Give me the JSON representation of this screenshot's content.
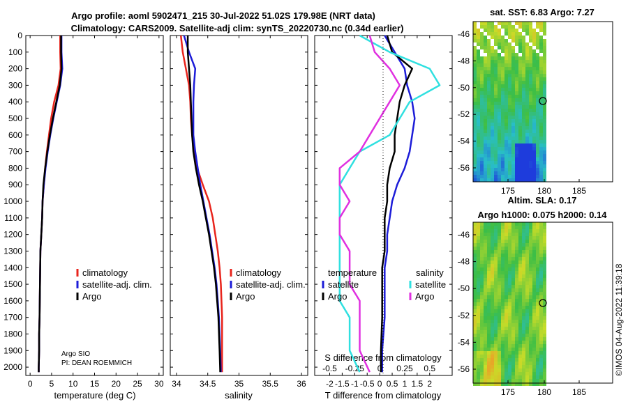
{
  "header": {
    "title_line1": "Argo profile: aoml 5902471_215 30-Jul-2022 51.02S 179.98E (NRT data)",
    "title_line2": "Climatology: CARS2009. Satellite-adj clim: synTS_20220730.nc (0.34d earlier)"
  },
  "colors": {
    "climatology": "#e8241c",
    "satellite_adj": "#1c1cd8",
    "argo": "#000000",
    "argo_salinity_diff": "#e030e0",
    "satellite_diff": "#30e0e0"
  },
  "depth_axis": {
    "ticks": [
      "0",
      "100",
      "200",
      "300",
      "400",
      "500",
      "600",
      "700",
      "800",
      "900",
      "1000",
      "1100",
      "1200",
      "1300",
      "1400",
      "1500",
      "1600",
      "1700",
      "1800",
      "1900",
      "2000"
    ],
    "range": [
      0,
      2050
    ]
  },
  "panels": {
    "temperature": {
      "xlabel": "temperature (deg C)",
      "ticks": [
        "0",
        "5",
        "10",
        "15",
        "20",
        "25",
        "30"
      ],
      "legend": [
        "climatology",
        "satellite-adj. clim.",
        "Argo"
      ],
      "footnote1": "Argo SIO",
      "footnote2": "PI: DEAN ROEMMICH"
    },
    "salinity": {
      "xlabel": "salinity",
      "ticks": [
        "34",
        "34.5",
        "35",
        "35.5",
        "36"
      ],
      "legend": [
        "climatology",
        "satellite-adj. clim.",
        "Argo"
      ]
    },
    "difference": {
      "xlabel": "T difference from climatology",
      "ticks": [
        "-2",
        "-1.5",
        "-1",
        "-0.5",
        "0",
        "0.5",
        "1",
        "1.5",
        "2"
      ],
      "s_title": "S difference from climatology",
      "s_ticks": [
        "-0.5",
        "-0.25",
        "0",
        "0.25",
        "0.5"
      ],
      "legend_temp_title": "temperature",
      "legend_sal_title": "salinity",
      "legend_temp": [
        "satellite",
        "Argo"
      ],
      "legend_sal": [
        "satellite",
        "Argo"
      ]
    }
  },
  "maps": {
    "sst": {
      "title": "sat. SST: 6.83 Argo: 7.27",
      "yticks": [
        "-46",
        "-48",
        "-50",
        "-52",
        "-54",
        "-56"
      ],
      "xticks": [
        "175",
        "180",
        "185"
      ]
    },
    "sla": {
      "title1": "Altim. SLA: 0.17",
      "title2": "Argo h1000: 0.075 h2000: 0.14",
      "yticks": [
        "-46",
        "-48",
        "-50",
        "-52",
        "-54",
        "-56"
      ],
      "xticks": [
        "175",
        "180",
        "185"
      ]
    }
  },
  "watermark": "©IMOS 04-Aug-2022 11:39:18",
  "chart_data": [
    {
      "type": "line",
      "name": "temperature profile",
      "xlabel": "temperature (deg C)",
      "ylabel": "depth (dbar)",
      "xlim": [
        -1,
        31
      ],
      "ylim": [
        2050,
        0
      ],
      "series": [
        {
          "name": "climatology",
          "x": [
            7.0,
            7.0,
            7.1,
            6.6,
            5.6,
            4.9,
            4.4,
            3.9,
            3.5,
            3.2,
            2.9,
            2.8,
            2.6,
            2.4,
            2.3,
            2.2,
            2.1,
            2.1,
            2.0,
            2.0
          ],
          "y": [
            0,
            100,
            200,
            300,
            400,
            500,
            600,
            700,
            800,
            900,
            1000,
            1100,
            1200,
            1300,
            1500,
            1700,
            1800,
            1900,
            2000,
            2030
          ]
        },
        {
          "name": "satellite-adj. clim.",
          "x": [
            7.3,
            7.3,
            7.5,
            7.0,
            6.2,
            5.4,
            4.7,
            4.1,
            3.6,
            3.2,
            2.9,
            2.8,
            2.6,
            2.4,
            2.3,
            2.2,
            2.1,
            2.1,
            2.0,
            2.0
          ],
          "y": [
            0,
            100,
            200,
            300,
            400,
            500,
            600,
            700,
            800,
            900,
            1000,
            1100,
            1200,
            1300,
            1500,
            1700,
            1800,
            1900,
            2000,
            2030
          ]
        },
        {
          "name": "Argo",
          "x": [
            7.2,
            7.2,
            7.3,
            6.9,
            6.1,
            5.3,
            4.6,
            4.0,
            3.5,
            3.1,
            2.9,
            2.8,
            2.6,
            2.4,
            2.3,
            2.2,
            2.1,
            2.1,
            2.0,
            2.0
          ],
          "y": [
            0,
            100,
            200,
            300,
            400,
            500,
            600,
            700,
            800,
            900,
            1000,
            1100,
            1200,
            1300,
            1500,
            1700,
            1800,
            1900,
            2000,
            2030
          ]
        }
      ]
    },
    {
      "type": "line",
      "name": "salinity profile",
      "xlabel": "salinity",
      "ylabel": "depth (dbar)",
      "xlim": [
        33.9,
        36.1
      ],
      "ylim": [
        2050,
        0
      ],
      "series": [
        {
          "name": "climatology",
          "x": [
            34.07,
            34.1,
            34.15,
            34.2,
            34.22,
            34.23,
            34.25,
            34.28,
            34.33,
            34.42,
            34.52,
            34.58,
            34.62,
            34.66,
            34.69,
            34.71,
            34.72,
            34.73,
            34.73,
            34.73
          ],
          "y": [
            0,
            100,
            200,
            300,
            400,
            500,
            600,
            700,
            800,
            900,
            1000,
            1100,
            1200,
            1300,
            1400,
            1500,
            1600,
            1700,
            1900,
            2030
          ]
        },
        {
          "name": "satellite-adj. clim.",
          "x": [
            34.12,
            34.2,
            34.3,
            34.28,
            34.27,
            34.27,
            34.27,
            34.3,
            34.34,
            34.38,
            34.43,
            34.48,
            34.53,
            34.57,
            34.61,
            34.64,
            34.66,
            34.68,
            34.7,
            34.71
          ],
          "y": [
            0,
            100,
            200,
            300,
            400,
            500,
            600,
            700,
            800,
            900,
            1000,
            1100,
            1200,
            1300,
            1400,
            1500,
            1600,
            1700,
            1900,
            2030
          ]
        },
        {
          "name": "Argo",
          "x": [
            34.18,
            34.18,
            34.2,
            34.22,
            34.23,
            34.24,
            34.25,
            34.27,
            34.31,
            34.36,
            34.42,
            34.47,
            34.52,
            34.56,
            34.6,
            34.63,
            34.65,
            34.67,
            34.69,
            34.7
          ],
          "y": [
            0,
            100,
            200,
            300,
            400,
            500,
            600,
            700,
            800,
            900,
            1000,
            1100,
            1200,
            1300,
            1400,
            1500,
            1600,
            1700,
            1900,
            2030
          ]
        }
      ]
    },
    {
      "type": "line",
      "name": "difference from climatology",
      "xlabel": "T difference from climatology",
      "x2label": "S difference from climatology",
      "xlim": [
        -2.6,
        2.9
      ],
      "ylim": [
        2050,
        0
      ],
      "series": [
        {
          "name": "temperature satellite",
          "x": [
            0.2,
            0.6,
            1.0,
            1.1,
            1.3,
            1.4,
            1.3,
            1.2,
            1.0,
            0.7,
            0.5,
            0.4,
            0.3,
            0.3,
            0.2,
            0.2,
            0.2,
            0.2,
            0.1,
            0.1
          ],
          "y": [
            0,
            100,
            200,
            300,
            400,
            500,
            600,
            700,
            800,
            900,
            1000,
            1100,
            1200,
            1300,
            1400,
            1500,
            1600,
            1700,
            1900,
            2030
          ]
        },
        {
          "name": "temperature Argo",
          "x": [
            0.3,
            0.5,
            1.3,
            1.0,
            0.8,
            0.7,
            0.6,
            0.6,
            0.4,
            0.3,
            0.3,
            0.2,
            0.2,
            0.2,
            0.1,
            0.1,
            0.1,
            0.1,
            0.05,
            0.05
          ],
          "y": [
            0,
            100,
            200,
            300,
            400,
            500,
            600,
            700,
            800,
            900,
            1000,
            1100,
            1200,
            1300,
            1400,
            1500,
            1600,
            1700,
            1900,
            2030
          ]
        },
        {
          "name": "salinity satellite",
          "x": [
            -0.2,
            0.1,
            0.5,
            0.6,
            0.3,
            0.2,
            0.1,
            -0.2,
            -0.3,
            -0.4,
            -0.4,
            -0.4,
            -0.4,
            -0.4,
            -0.4,
            -0.4,
            -0.4,
            -0.3,
            -0.3,
            -0.2
          ],
          "y": [
            0,
            100,
            200,
            300,
            400,
            500,
            600,
            700,
            800,
            900,
            1000,
            1100,
            1200,
            1300,
            1400,
            1500,
            1600,
            1700,
            1900,
            2030
          ]
        },
        {
          "name": "salinity Argo",
          "x": [
            -0.1,
            -0.05,
            0.1,
            0.2,
            0.1,
            0.0,
            -0.1,
            -0.2,
            -0.4,
            -0.4,
            -0.3,
            -0.4,
            -0.4,
            -0.3,
            -0.3,
            -0.3,
            -0.2,
            -0.2,
            -0.2,
            -0.1
          ],
          "y": [
            0,
            100,
            200,
            300,
            400,
            500,
            600,
            700,
            800,
            900,
            1000,
            1100,
            1200,
            1300,
            1400,
            1500,
            1600,
            1700,
            1900,
            2030
          ]
        }
      ]
    }
  ]
}
